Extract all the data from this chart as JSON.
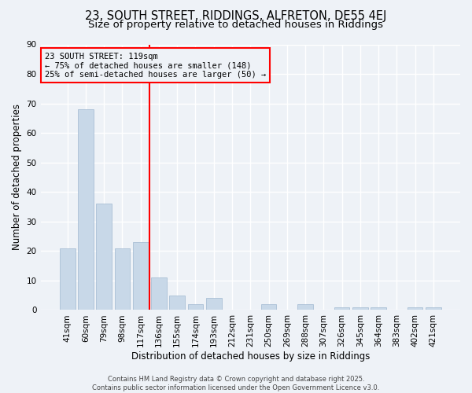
{
  "title_line1": "23, SOUTH STREET, RIDDINGS, ALFRETON, DE55 4EJ",
  "title_line2": "Size of property relative to detached houses in Riddings",
  "categories": [
    "41sqm",
    "60sqm",
    "79sqm",
    "98sqm",
    "117sqm",
    "136sqm",
    "155sqm",
    "174sqm",
    "193sqm",
    "212sqm",
    "231sqm",
    "250sqm",
    "269sqm",
    "288sqm",
    "307sqm",
    "326sqm",
    "345sqm",
    "364sqm",
    "383sqm",
    "402sqm",
    "421sqm"
  ],
  "values": [
    21,
    68,
    36,
    21,
    23,
    11,
    5,
    2,
    4,
    0,
    0,
    2,
    0,
    2,
    0,
    1,
    1,
    1,
    0,
    1,
    1
  ],
  "bar_color": "#c8d8e8",
  "bar_edgecolor": "#a0b8d0",
  "xlabel": "Distribution of detached houses by size in Riddings",
  "ylabel": "Number of detached properties",
  "ylim": [
    0,
    90
  ],
  "yticks": [
    0,
    10,
    20,
    30,
    40,
    50,
    60,
    70,
    80,
    90
  ],
  "annotation_line1": "23 SOUTH STREET: 119sqm",
  "annotation_line2": "← 75% of detached houses are smaller (148)",
  "annotation_line3": "25% of semi-detached houses are larger (50) →",
  "vline_position": 4.5,
  "background_color": "#eef2f7",
  "grid_color": "#ffffff",
  "footer_line1": "Contains HM Land Registry data © Crown copyright and database right 2025.",
  "footer_line2": "Contains public sector information licensed under the Open Government Licence v3.0.",
  "title_fontsize": 10.5,
  "subtitle_fontsize": 9.5,
  "axis_label_fontsize": 8.5,
  "tick_fontsize": 7.5,
  "annotation_fontsize": 7.5,
  "footer_fontsize": 6.0
}
